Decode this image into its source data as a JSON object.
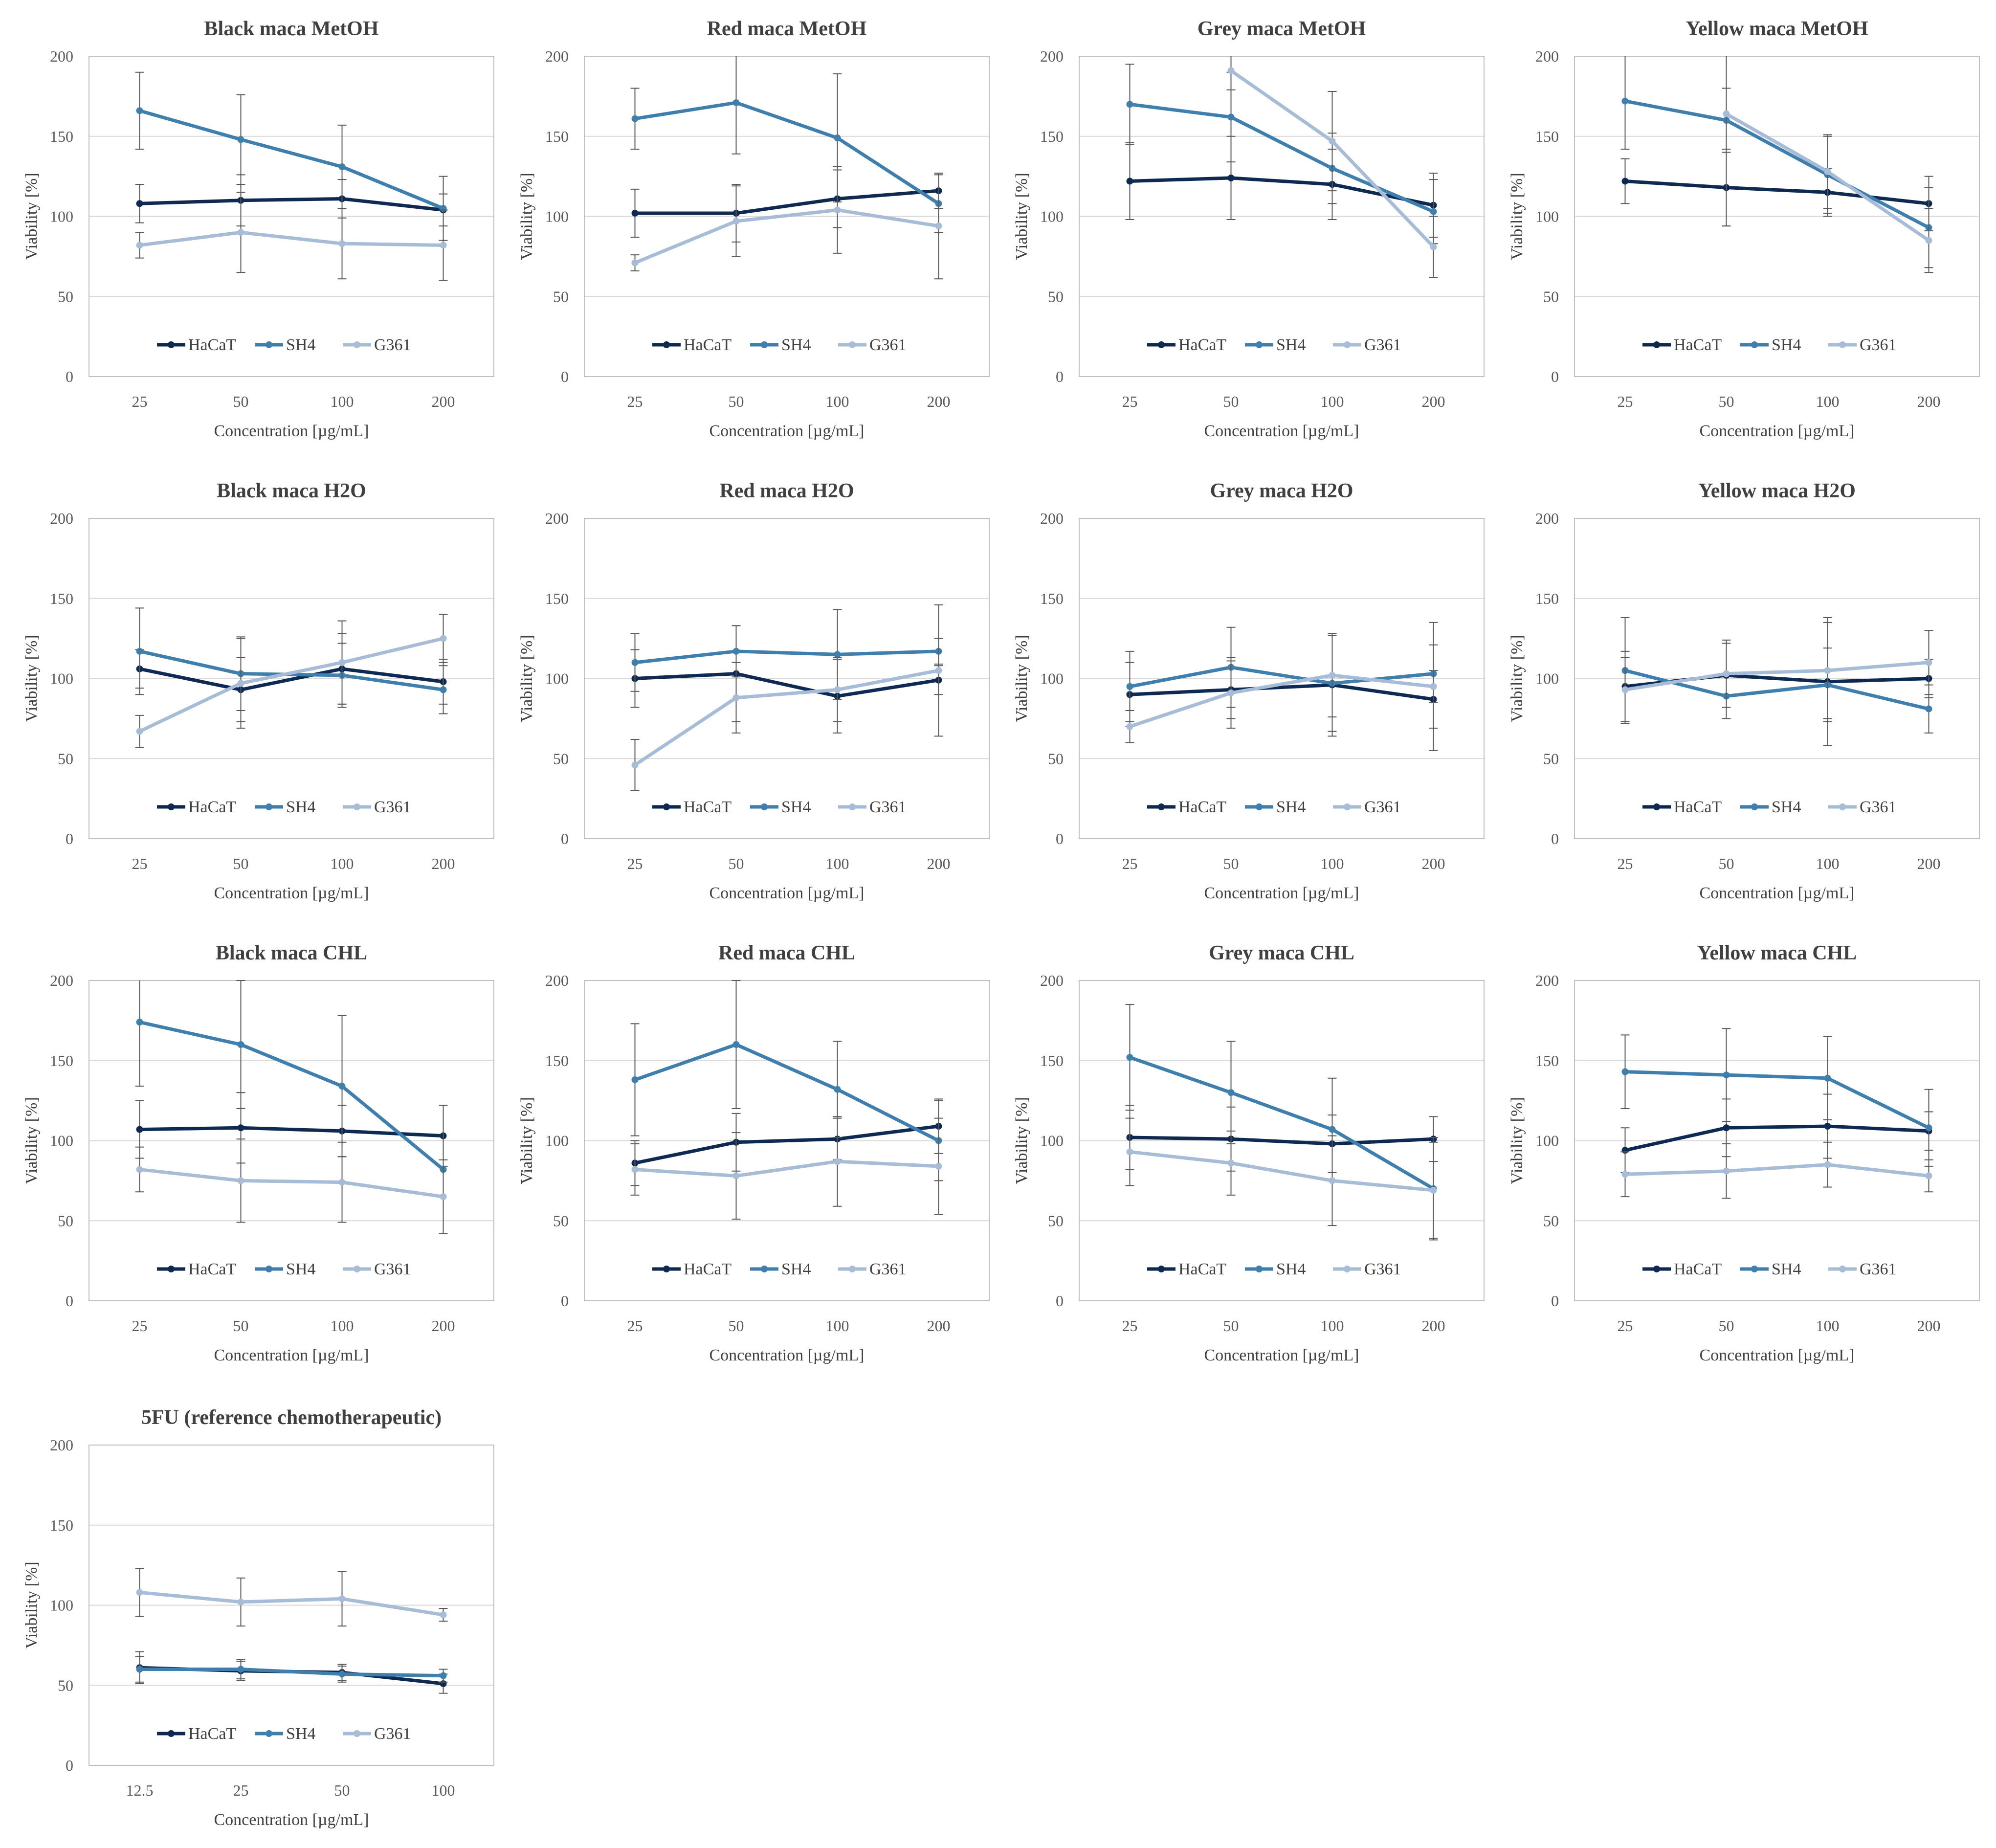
{
  "colors": {
    "HaCaT": "#0e2a52",
    "SH4": "#3f7fae",
    "G361": "#a7bcd6",
    "grid": "#d9d9d9",
    "plot_border": "#bfbfbf",
    "errorbar": "#595959"
  },
  "series_names": [
    "HaCaT",
    "SH4",
    "G361"
  ],
  "chart_data": [
    {
      "type": "line",
      "title": "Black maca MetOH",
      "xlabel": "Concentration [µg/mL]",
      "ylabel": "Viability [%]",
      "ylim": [
        0,
        200
      ],
      "yticks": [
        0,
        50,
        100,
        150,
        200
      ],
      "categories": [
        "25",
        "50",
        "100",
        "200"
      ],
      "legend": "bottom-inside",
      "series": [
        {
          "name": "HaCaT",
          "values": [
            108,
            110,
            111,
            104
          ],
          "errors": [
            12,
            16,
            12,
            10
          ]
        },
        {
          "name": "SH4",
          "values": [
            166,
            148,
            131,
            105
          ],
          "errors": [
            24,
            28,
            26,
            20
          ]
        },
        {
          "name": "G361",
          "values": [
            82,
            90,
            83,
            82
          ],
          "errors": [
            8,
            25,
            22,
            22
          ]
        }
      ]
    },
    {
      "type": "line",
      "title": "Red maca MetOH",
      "xlabel": "Concentration [µg/mL]",
      "ylabel": "Viability [%]",
      "ylim": [
        0,
        200
      ],
      "yticks": [
        0,
        50,
        100,
        150,
        200
      ],
      "categories": [
        "25",
        "50",
        "100",
        "200"
      ],
      "legend": "bottom-inside",
      "series": [
        {
          "name": "HaCaT",
          "values": [
            102,
            102,
            111,
            116
          ],
          "errors": [
            15,
            18,
            18,
            11
          ]
        },
        {
          "name": "SH4",
          "values": [
            161,
            171,
            149,
            108
          ],
          "errors": [
            19,
            32,
            40,
            18
          ]
        },
        {
          "name": "G361",
          "values": [
            71,
            97,
            104,
            94
          ],
          "errors": [
            5,
            22,
            27,
            33
          ]
        }
      ]
    },
    {
      "type": "line",
      "title": "Grey maca MetOH",
      "xlabel": "Concentration [µg/mL]",
      "ylabel": "Viability [%]",
      "ylim": [
        0,
        200
      ],
      "yticks": [
        0,
        50,
        100,
        150,
        200
      ],
      "categories": [
        "25",
        "50",
        "100",
        "200"
      ],
      "legend": "bottom-inside",
      "series": [
        {
          "name": "HaCaT",
          "values": [
            122,
            124,
            120,
            107
          ],
          "errors": [
            24,
            26,
            22,
            20
          ]
        },
        {
          "name": "SH4",
          "values": [
            170,
            162,
            130,
            103
          ],
          "errors": [
            25,
            28,
            22,
            20
          ]
        },
        {
          "name": "G361",
          "values": [
            null,
            191,
            147,
            81
          ],
          "errors": [
            null,
            12,
            31,
            19
          ]
        }
      ]
    },
    {
      "type": "line",
      "title": "Yellow maca MetOH",
      "xlabel": "Concentration [µg/mL]",
      "ylabel": "Viability [%]",
      "ylim": [
        0,
        200
      ],
      "yticks": [
        0,
        50,
        100,
        150,
        200
      ],
      "categories": [
        "25",
        "50",
        "100",
        "200"
      ],
      "legend": "bottom-inside",
      "series": [
        {
          "name": "HaCaT",
          "values": [
            122,
            118,
            115,
            108
          ],
          "errors": [
            14,
            24,
            15,
            17
          ]
        },
        {
          "name": "SH4",
          "values": [
            172,
            160,
            126,
            93
          ],
          "errors": [
            30,
            20,
            24,
            25
          ]
        },
        {
          "name": "G361",
          "values": [
            null,
            164,
            128,
            85
          ],
          "errors": [
            null,
            70,
            23,
            20
          ]
        }
      ]
    },
    {
      "type": "line",
      "title": "Black maca H2O",
      "xlabel": "Concentration [µg/mL]",
      "ylabel": "Viability [%]",
      "ylim": [
        0,
        200
      ],
      "yticks": [
        0,
        50,
        100,
        150,
        200
      ],
      "categories": [
        "25",
        "50",
        "100",
        "200"
      ],
      "legend": "bottom-inside",
      "series": [
        {
          "name": "HaCaT",
          "values": [
            106,
            93,
            106,
            98
          ],
          "errors": [
            12,
            20,
            22,
            14
          ]
        },
        {
          "name": "SH4",
          "values": [
            117,
            103,
            102,
            93
          ],
          "errors": [
            27,
            23,
            20,
            15
          ]
        },
        {
          "name": "G361",
          "values": [
            67,
            97,
            110,
            125
          ],
          "errors": [
            10,
            28,
            26,
            15
          ]
        }
      ]
    },
    {
      "type": "line",
      "title": "Red maca H2O",
      "xlabel": "Concentration [µg/mL]",
      "ylabel": "Viability [%]",
      "ylim": [
        0,
        200
      ],
      "yticks": [
        0,
        50,
        100,
        150,
        200
      ],
      "categories": [
        "25",
        "50",
        "100",
        "200"
      ],
      "legend": "bottom-inside",
      "series": [
        {
          "name": "HaCaT",
          "values": [
            100,
            103,
            89,
            99
          ],
          "errors": [
            18,
            30,
            23,
            9
          ]
        },
        {
          "name": "SH4",
          "values": [
            110,
            117,
            115,
            117
          ],
          "errors": [
            18,
            16,
            28,
            8
          ]
        },
        {
          "name": "G361",
          "values": [
            46,
            88,
            93,
            105
          ],
          "errors": [
            16,
            22,
            20,
            41
          ]
        }
      ]
    },
    {
      "type": "line",
      "title": "Grey maca H2O",
      "xlabel": "Concentration [µg/mL]",
      "ylabel": "Viability [%]",
      "ylim": [
        0,
        200
      ],
      "yticks": [
        0,
        50,
        100,
        150,
        200
      ],
      "categories": [
        "25",
        "50",
        "100",
        "200"
      ],
      "legend": "bottom-inside",
      "series": [
        {
          "name": "HaCaT",
          "values": [
            90,
            93,
            96,
            87
          ],
          "errors": [
            20,
            18,
            32,
            18
          ]
        },
        {
          "name": "SH4",
          "values": [
            95,
            107,
            97,
            103
          ],
          "errors": [
            22,
            25,
            30,
            18
          ]
        },
        {
          "name": "G361",
          "values": [
            70,
            91,
            102,
            95
          ],
          "errors": [
            10,
            22,
            26,
            40
          ]
        }
      ]
    },
    {
      "type": "line",
      "title": "Yellow maca H2O",
      "xlabel": "Concentration [µg/mL]",
      "ylabel": "Viability [%]",
      "ylim": [
        0,
        200
      ],
      "yticks": [
        0,
        50,
        100,
        150,
        200
      ],
      "categories": [
        "25",
        "50",
        "100",
        "200"
      ],
      "legend": "bottom-inside",
      "series": [
        {
          "name": "HaCaT",
          "values": [
            95,
            102,
            98,
            100
          ],
          "errors": [
            22,
            20,
            40,
            12
          ]
        },
        {
          "name": "SH4",
          "values": [
            105,
            89,
            96,
            81
          ],
          "errors": [
            33,
            14,
            23,
            15
          ]
        },
        {
          "name": "G361",
          "values": [
            93,
            103,
            105,
            110
          ],
          "errors": [
            20,
            21,
            30,
            20
          ]
        }
      ]
    },
    {
      "type": "line",
      "title": "Black maca CHL",
      "xlabel": "Concentration [µg/mL]",
      "ylabel": "Viability [%]",
      "ylim": [
        0,
        200
      ],
      "yticks": [
        0,
        50,
        100,
        150,
        200
      ],
      "categories": [
        "25",
        "50",
        "100",
        "200"
      ],
      "legend": "bottom-inside",
      "series": [
        {
          "name": "HaCaT",
          "values": [
            107,
            108,
            106,
            103
          ],
          "errors": [
            18,
            22,
            16,
            19
          ]
        },
        {
          "name": "SH4",
          "values": [
            174,
            160,
            134,
            82
          ],
          "errors": [
            40,
            40,
            44,
            40
          ]
        },
        {
          "name": "G361",
          "values": [
            82,
            75,
            74,
            65
          ],
          "errors": [
            14,
            26,
            25,
            23
          ]
        }
      ]
    },
    {
      "type": "line",
      "title": "Red maca CHL",
      "xlabel": "Concentration [µg/mL]",
      "ylabel": "Viability [%]",
      "ylim": [
        0,
        200
      ],
      "yticks": [
        0,
        50,
        100,
        150,
        200
      ],
      "categories": [
        "25",
        "50",
        "100",
        "200"
      ],
      "legend": "bottom-inside",
      "series": [
        {
          "name": "HaCaT",
          "values": [
            86,
            99,
            101,
            109
          ],
          "errors": [
            14,
            18,
            13,
            17
          ]
        },
        {
          "name": "SH4",
          "values": [
            138,
            160,
            132,
            100
          ],
          "errors": [
            35,
            40,
            30,
            25
          ]
        },
        {
          "name": "G361",
          "values": [
            82,
            78,
            87,
            84
          ],
          "errors": [
            16,
            27,
            28,
            30
          ]
        }
      ]
    },
    {
      "type": "line",
      "title": "Grey maca CHL",
      "xlabel": "Concentration [µg/mL]",
      "ylabel": "Viability [%]",
      "ylim": [
        0,
        200
      ],
      "yticks": [
        0,
        50,
        100,
        150,
        200
      ],
      "categories": [
        "25",
        "50",
        "100",
        "200"
      ],
      "legend": "bottom-inside",
      "series": [
        {
          "name": "HaCaT",
          "values": [
            102,
            101,
            98,
            101
          ],
          "errors": [
            20,
            20,
            18,
            14
          ]
        },
        {
          "name": "SH4",
          "values": [
            152,
            130,
            107,
            70
          ],
          "errors": [
            33,
            32,
            32,
            32
          ]
        },
        {
          "name": "G361",
          "values": [
            93,
            86,
            75,
            69
          ],
          "errors": [
            21,
            20,
            28,
            30
          ]
        }
      ]
    },
    {
      "type": "line",
      "title": "Yellow maca CHL",
      "xlabel": "Concentration [µg/mL]",
      "ylabel": "Viability [%]",
      "ylim": [
        0,
        200
      ],
      "yticks": [
        0,
        50,
        100,
        150,
        200
      ],
      "categories": [
        "25",
        "50",
        "100",
        "200"
      ],
      "legend": "bottom-inside",
      "series": [
        {
          "name": "HaCaT",
          "values": [
            94,
            108,
            109,
            106
          ],
          "errors": [
            14,
            18,
            20,
            12
          ]
        },
        {
          "name": "SH4",
          "values": [
            143,
            141,
            139,
            108
          ],
          "errors": [
            23,
            29,
            26,
            24
          ]
        },
        {
          "name": "G361",
          "values": [
            79,
            81,
            85,
            78
          ],
          "errors": [
            14,
            17,
            14,
            10
          ]
        }
      ]
    },
    {
      "type": "line",
      "title": "5FU (reference chemotherapeutic)",
      "xlabel": "Concentration [µg/mL]",
      "ylabel": "Viability [%]",
      "ylim": [
        0,
        200
      ],
      "yticks": [
        0,
        50,
        100,
        150,
        200
      ],
      "categories": [
        "12.5",
        "25",
        "50",
        "100"
      ],
      "legend": "bottom-inside",
      "series": [
        {
          "name": "HaCaT",
          "values": [
            61,
            59,
            58,
            51
          ],
          "errors": [
            10,
            6,
            5,
            6
          ]
        },
        {
          "name": "SH4",
          "values": [
            60,
            60,
            57,
            56
          ],
          "errors": [
            8,
            6,
            5,
            4
          ]
        },
        {
          "name": "G361",
          "values": [
            108,
            102,
            104,
            94
          ],
          "errors": [
            15,
            15,
            17,
            4
          ]
        }
      ]
    }
  ]
}
